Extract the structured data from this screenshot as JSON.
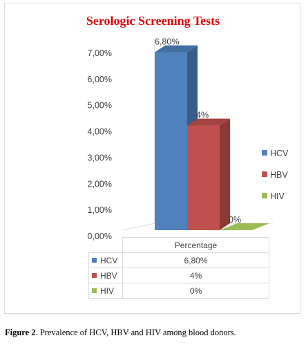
{
  "chart_data": {
    "type": "bar",
    "title": "Serologic Screening Tests",
    "categories": [
      "Percentage"
    ],
    "series": [
      {
        "name": "HCV",
        "value": 6.8,
        "label": "6,80%",
        "color": "#4f81bd"
      },
      {
        "name": "HBV",
        "value": 4,
        "label": "4%",
        "color": "#c0504d"
      },
      {
        "name": "HIV",
        "value": 0,
        "label": "0%",
        "color": "#9bbb59"
      }
    ],
    "bar_labels": [
      "6,80%",
      "4%",
      "0%"
    ],
    "yticks": [
      "0,00%",
      "1,00%",
      "2,00%",
      "3,00%",
      "4,00%",
      "5,00%",
      "6,00%",
      "7,00%"
    ],
    "ylim": [
      0,
      7
    ],
    "legend_position": "right",
    "grid": false,
    "style": "3d-clustered-column",
    "data_table": {
      "header": "Percentage",
      "rows": [
        {
          "name": "HCV",
          "value": "6,80%"
        },
        {
          "name": "HBV",
          "value": "4%"
        },
        {
          "name": "HIV",
          "value": "0%"
        }
      ]
    }
  },
  "caption": {
    "label": "Figure 2",
    "text": ". Prevalence of HCV, HBV and HIV among blood donors."
  }
}
